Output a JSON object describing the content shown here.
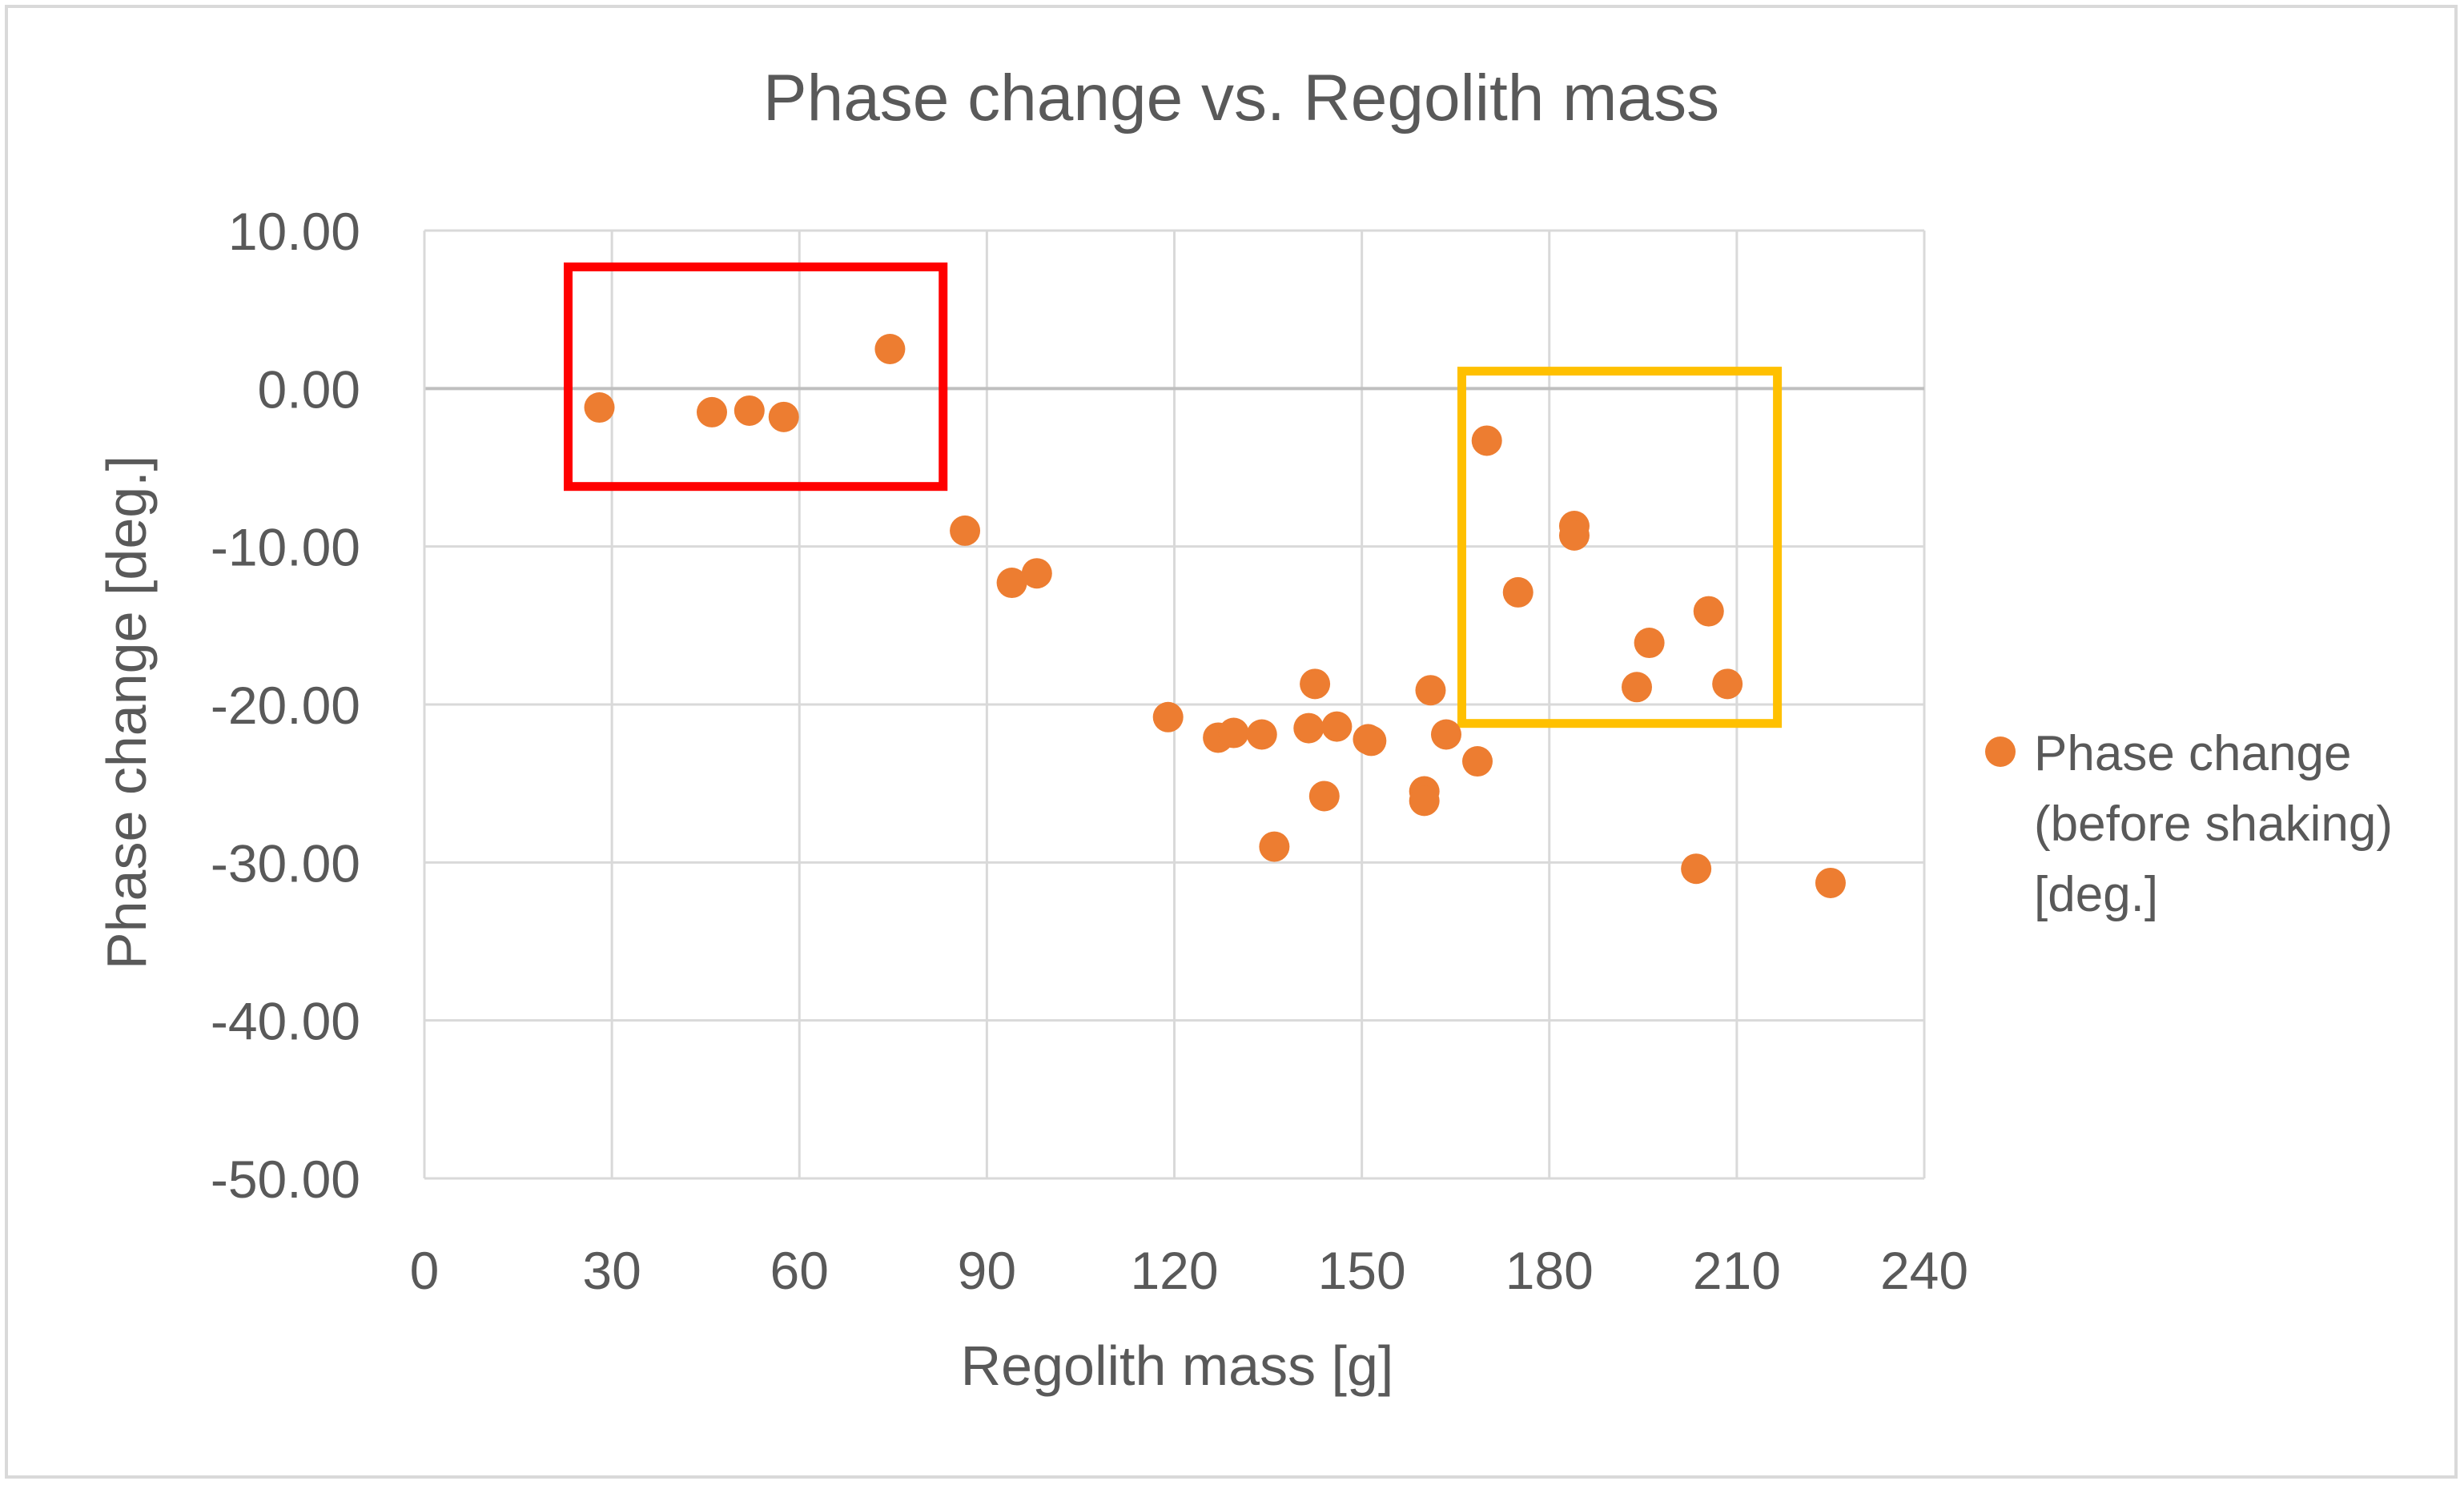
{
  "chart_data": {
    "type": "scatter",
    "title": "Phase change vs. Regolith mass",
    "xlabel": "Regolith mass [g]",
    "ylabel": "Phase change [deg.]",
    "xlim": [
      0,
      240
    ],
    "ylim": [
      -50,
      10
    ],
    "x_ticks": [
      "0",
      "30",
      "60",
      "90",
      "120",
      "150",
      "180",
      "210",
      "240"
    ],
    "y_ticks": [
      "10.00",
      "0.00",
      "-10.00",
      "-20.00",
      "-30.00",
      "-40.00",
      "-50.00"
    ],
    "x_tick_values": [
      0,
      30,
      60,
      90,
      120,
      150,
      180,
      210,
      240
    ],
    "y_tick_values": [
      10,
      0,
      -10,
      -20,
      -30,
      -40,
      -50
    ],
    "grid": true,
    "legend_position": "right",
    "series": [
      {
        "name": "Phase change (before shaking) [deg.]",
        "legend_lines": [
          "Phase change",
          "(before shaking)",
          "[deg.]"
        ],
        "color": "#ED7D31",
        "x": [
          28,
          46,
          52,
          57.5,
          74.5,
          86.5,
          94,
          98,
          119,
          127,
          129.5,
          134,
          136,
          141.5,
          142.5,
          144,
          146,
          151,
          151.5,
          160,
          160,
          161,
          163.5,
          168.5,
          170,
          175,
          184,
          184,
          194,
          196,
          203.5,
          205.5,
          208.5,
          225
        ],
        "y": [
          -1.2,
          -1.5,
          -1.4,
          -1.8,
          2.5,
          -9,
          -12.3,
          -11.7,
          -20.8,
          -22.1,
          -21.8,
          -21.9,
          -29,
          -21.5,
          -18.7,
          -25.8,
          -21.4,
          -22.2,
          -22.3,
          -25.5,
          -26.1,
          -19.1,
          -21.9,
          -23.6,
          -3.3,
          -12.9,
          -8.7,
          -9.3,
          -18.9,
          -16.1,
          -30.4,
          -14.1,
          -18.7,
          -31.3
        ]
      }
    ],
    "highlight_boxes": [
      {
        "name": "red-box",
        "color": "#FF0000",
        "x_range": [
          23,
          83
        ],
        "y_range": [
          -6.2,
          7.7
        ]
      },
      {
        "name": "yellow-box",
        "color": "#FFC000",
        "x_range": [
          166,
          216.5
        ],
        "y_range": [
          -21.2,
          1.1
        ]
      }
    ]
  }
}
